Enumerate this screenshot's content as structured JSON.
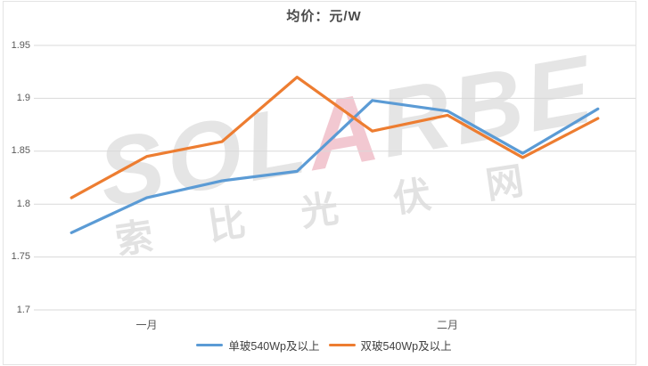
{
  "title": "均价：元/W",
  "watermark": {
    "latin_pre": "SOL",
    "latin_accent": "A",
    "latin_post": "RBE",
    "cjk": "索比光伏网"
  },
  "colors": {
    "grid": "#d9d9d9",
    "axis_text": "#595959",
    "title_text": "#4a4a4a",
    "series_blue": "#5B9BD5",
    "series_orange": "#ED7D31"
  },
  "chart_data": {
    "type": "line",
    "title": "均价：元/W",
    "xlabel": "",
    "ylabel": "",
    "n_points": 8,
    "x_tick_labels": [
      {
        "index": 1,
        "label": "一月"
      },
      {
        "index": 5,
        "label": "二月"
      }
    ],
    "series": [
      {
        "name": "单玻540Wp及以上",
        "color": "#5B9BD5",
        "values": [
          1.773,
          1.806,
          1.822,
          1.831,
          1.898,
          1.888,
          1.848,
          1.89
        ]
      },
      {
        "name": "双玻540Wp及以上",
        "color": "#ED7D31",
        "values": [
          1.806,
          1.845,
          1.859,
          1.92,
          1.869,
          1.884,
          1.844,
          1.881
        ]
      }
    ],
    "y_axis": {
      "min": 1.7,
      "max": 1.95,
      "step": 0.05,
      "tick_labels": [
        "1.7",
        "1.75",
        "1.8",
        "1.85",
        "1.9",
        "1.95"
      ]
    },
    "grid": true,
    "legend_position": "bottom"
  }
}
